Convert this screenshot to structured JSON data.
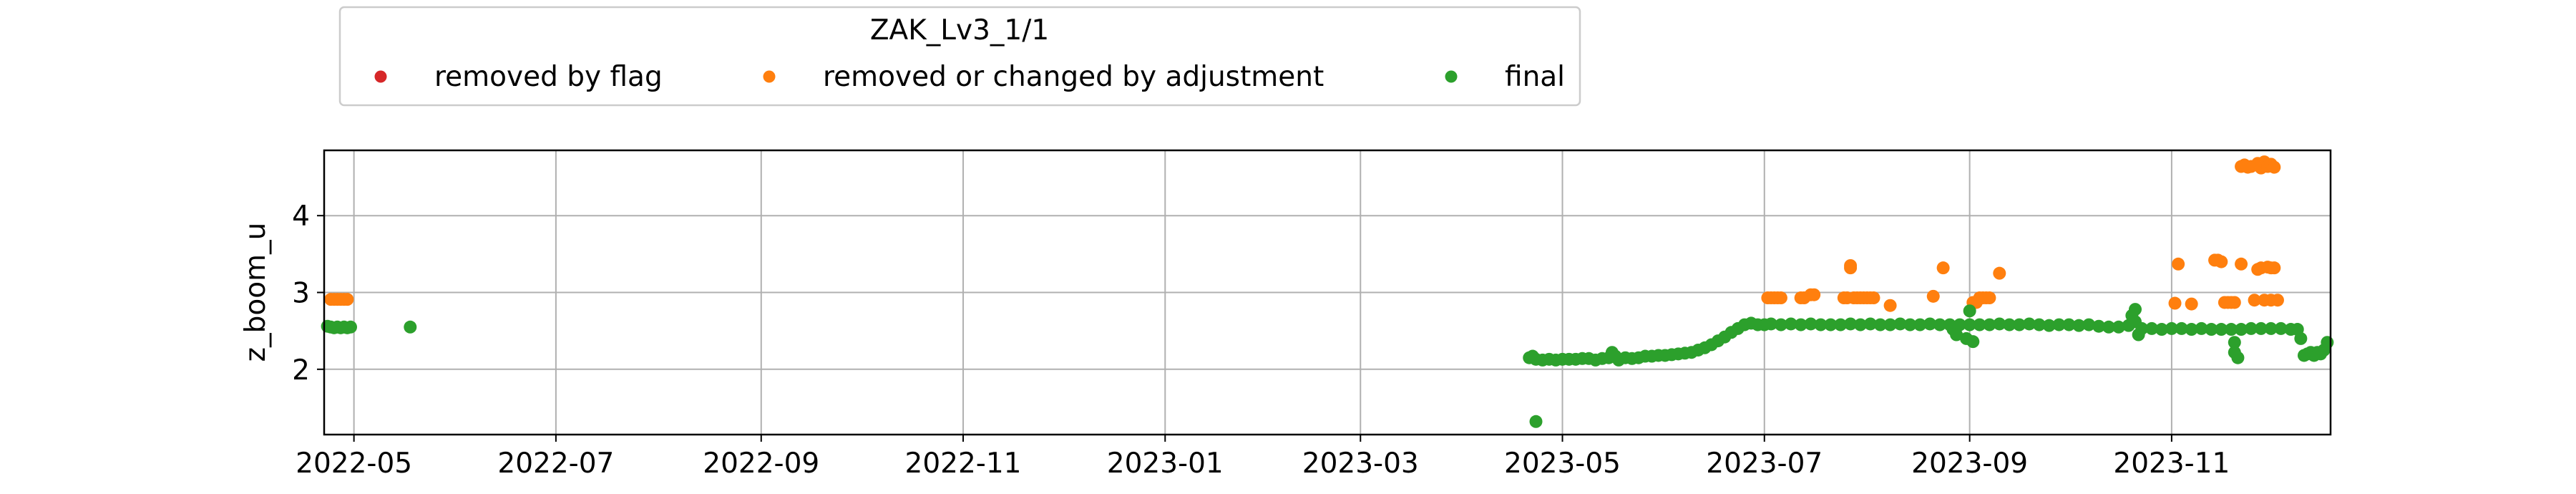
{
  "chart_data": {
    "type": "scatter",
    "title": "",
    "xlabel": "",
    "ylabel": "z_boom_u",
    "x_type": "date",
    "xlim": [
      "2022-04-22",
      "2023-12-19"
    ],
    "ylim": [
      1.15,
      4.85
    ],
    "x_ticks": [
      "2022-05-01",
      "2022-07-01",
      "2022-09-01",
      "2022-11-01",
      "2023-01-01",
      "2023-03-01",
      "2023-05-01",
      "2023-07-01",
      "2023-09-01",
      "2023-11-01"
    ],
    "x_tick_labels": [
      "2022-05",
      "2022-07",
      "2022-09",
      "2022-11",
      "2023-01",
      "2023-03",
      "2023-05",
      "2023-07",
      "2023-09",
      "2023-11"
    ],
    "y_ticks": [
      2,
      3,
      4
    ],
    "y_tick_labels": [
      "2",
      "3",
      "4"
    ],
    "grid": true,
    "legend": {
      "title": "ZAK_Lv3_1/1",
      "placement": "top-left, above plot",
      "columns": 3
    },
    "series": [
      {
        "name": "removed by flag",
        "color": "#d62728",
        "points": []
      },
      {
        "name": "removed or changed by adjustment",
        "color": "#ff7f0e",
        "points": [
          [
            "2022-04-24",
            2.91
          ],
          [
            "2022-04-25",
            2.91
          ],
          [
            "2022-04-26",
            2.91
          ],
          [
            "2022-04-27",
            2.91
          ],
          [
            "2022-04-28",
            2.91
          ],
          [
            "2022-04-29",
            2.91
          ],
          [
            "2023-07-02",
            2.93
          ],
          [
            "2023-07-03",
            2.93
          ],
          [
            "2023-07-04",
            2.93
          ],
          [
            "2023-07-05",
            2.93
          ],
          [
            "2023-07-06",
            2.93
          ],
          [
            "2023-07-12",
            2.93
          ],
          [
            "2023-07-13",
            2.93
          ],
          [
            "2023-07-15",
            2.97
          ],
          [
            "2023-07-16",
            2.97
          ],
          [
            "2023-07-25",
            2.93
          ],
          [
            "2023-07-26",
            2.93
          ],
          [
            "2023-07-27",
            3.32
          ],
          [
            "2023-07-27",
            3.35
          ],
          [
            "2023-07-28",
            2.93
          ],
          [
            "2023-07-29",
            2.93
          ],
          [
            "2023-07-30",
            2.93
          ],
          [
            "2023-07-31",
            2.93
          ],
          [
            "2023-08-01",
            2.93
          ],
          [
            "2023-08-02",
            2.93
          ],
          [
            "2023-08-03",
            2.93
          ],
          [
            "2023-08-08",
            2.83
          ],
          [
            "2023-08-21",
            2.95
          ],
          [
            "2023-08-24",
            3.32
          ],
          [
            "2023-09-02",
            2.87
          ],
          [
            "2023-09-03",
            2.87
          ],
          [
            "2023-09-04",
            2.93
          ],
          [
            "2023-09-05",
            2.93
          ],
          [
            "2023-09-06",
            2.93
          ],
          [
            "2023-09-07",
            2.93
          ],
          [
            "2023-09-10",
            3.25
          ],
          [
            "2023-11-02",
            2.86
          ],
          [
            "2023-11-03",
            3.37
          ],
          [
            "2023-11-07",
            2.85
          ],
          [
            "2023-11-14",
            3.42
          ],
          [
            "2023-11-15",
            3.42
          ],
          [
            "2023-11-16",
            3.4
          ],
          [
            "2023-11-17",
            2.87
          ],
          [
            "2023-11-18",
            2.87
          ],
          [
            "2023-11-19",
            2.87
          ],
          [
            "2023-11-20",
            2.87
          ],
          [
            "2023-11-22",
            3.37
          ],
          [
            "2023-11-22",
            4.64
          ],
          [
            "2023-11-23",
            4.66
          ],
          [
            "2023-11-24",
            4.63
          ],
          [
            "2023-11-25",
            4.64
          ],
          [
            "2023-11-26",
            2.9
          ],
          [
            "2023-11-27",
            3.3
          ],
          [
            "2023-11-27",
            4.68
          ],
          [
            "2023-11-28",
            3.32
          ],
          [
            "2023-11-28",
            4.62
          ],
          [
            "2023-11-29",
            4.7
          ],
          [
            "2023-11-29",
            2.9
          ],
          [
            "2023-11-30",
            3.33
          ],
          [
            "2023-11-30",
            4.64
          ],
          [
            "2023-12-01",
            3.32
          ],
          [
            "2023-12-01",
            4.67
          ],
          [
            "2023-12-01",
            2.9
          ],
          [
            "2023-12-02",
            4.63
          ],
          [
            "2023-12-02",
            3.32
          ],
          [
            "2023-12-03",
            2.9
          ]
        ]
      },
      {
        "name": "final",
        "color": "#2ca02c",
        "points": [
          [
            "2022-04-23",
            2.56
          ],
          [
            "2022-04-24",
            2.55
          ],
          [
            "2022-04-25",
            2.54
          ],
          [
            "2022-04-26",
            2.55
          ],
          [
            "2022-04-27",
            2.54
          ],
          [
            "2022-04-28",
            2.55
          ],
          [
            "2022-04-29",
            2.54
          ],
          [
            "2022-04-30",
            2.55
          ],
          [
            "2022-05-18",
            2.55
          ],
          [
            "2023-04-21",
            2.15
          ],
          [
            "2023-04-22",
            2.17
          ],
          [
            "2023-04-23",
            2.13
          ],
          [
            "2023-04-23",
            1.32
          ],
          [
            "2023-04-25",
            2.12
          ],
          [
            "2023-04-27",
            2.13
          ],
          [
            "2023-04-29",
            2.12
          ],
          [
            "2023-05-01",
            2.13
          ],
          [
            "2023-05-03",
            2.13
          ],
          [
            "2023-05-05",
            2.13
          ],
          [
            "2023-05-07",
            2.14
          ],
          [
            "2023-05-09",
            2.14
          ],
          [
            "2023-05-11",
            2.12
          ],
          [
            "2023-05-13",
            2.14
          ],
          [
            "2023-05-15",
            2.15
          ],
          [
            "2023-05-16",
            2.22
          ],
          [
            "2023-05-17",
            2.17
          ],
          [
            "2023-05-18",
            2.12
          ],
          [
            "2023-05-20",
            2.15
          ],
          [
            "2023-05-22",
            2.14
          ],
          [
            "2023-05-24",
            2.15
          ],
          [
            "2023-05-26",
            2.17
          ],
          [
            "2023-05-28",
            2.17
          ],
          [
            "2023-05-30",
            2.18
          ],
          [
            "2023-06-01",
            2.18
          ],
          [
            "2023-06-03",
            2.19
          ],
          [
            "2023-06-05",
            2.2
          ],
          [
            "2023-06-07",
            2.21
          ],
          [
            "2023-06-09",
            2.22
          ],
          [
            "2023-06-11",
            2.25
          ],
          [
            "2023-06-13",
            2.28
          ],
          [
            "2023-06-15",
            2.32
          ],
          [
            "2023-06-17",
            2.37
          ],
          [
            "2023-06-19",
            2.42
          ],
          [
            "2023-06-21",
            2.48
          ],
          [
            "2023-06-23",
            2.53
          ],
          [
            "2023-06-25",
            2.58
          ],
          [
            "2023-06-27",
            2.6
          ],
          [
            "2023-06-29",
            2.58
          ],
          [
            "2023-07-01",
            2.58
          ],
          [
            "2023-07-03",
            2.59
          ],
          [
            "2023-07-06",
            2.58
          ],
          [
            "2023-07-09",
            2.59
          ],
          [
            "2023-07-12",
            2.58
          ],
          [
            "2023-07-15",
            2.59
          ],
          [
            "2023-07-18",
            2.58
          ],
          [
            "2023-07-21",
            2.58
          ],
          [
            "2023-07-24",
            2.58
          ],
          [
            "2023-07-27",
            2.59
          ],
          [
            "2023-07-30",
            2.58
          ],
          [
            "2023-08-02",
            2.59
          ],
          [
            "2023-08-05",
            2.58
          ],
          [
            "2023-08-08",
            2.58
          ],
          [
            "2023-08-11",
            2.59
          ],
          [
            "2023-08-14",
            2.58
          ],
          [
            "2023-08-17",
            2.58
          ],
          [
            "2023-08-20",
            2.59
          ],
          [
            "2023-08-23",
            2.58
          ],
          [
            "2023-08-26",
            2.58
          ],
          [
            "2023-08-27",
            2.52
          ],
          [
            "2023-08-28",
            2.45
          ],
          [
            "2023-08-29",
            2.58
          ],
          [
            "2023-08-31",
            2.4
          ],
          [
            "2023-09-01",
            2.76
          ],
          [
            "2023-09-01",
            2.58
          ],
          [
            "2023-09-02",
            2.36
          ],
          [
            "2023-09-04",
            2.58
          ],
          [
            "2023-09-07",
            2.58
          ],
          [
            "2023-09-10",
            2.59
          ],
          [
            "2023-09-13",
            2.58
          ],
          [
            "2023-09-16",
            2.58
          ],
          [
            "2023-09-19",
            2.59
          ],
          [
            "2023-09-22",
            2.58
          ],
          [
            "2023-09-25",
            2.57
          ],
          [
            "2023-09-28",
            2.58
          ],
          [
            "2023-10-01",
            2.58
          ],
          [
            "2023-10-04",
            2.57
          ],
          [
            "2023-10-07",
            2.58
          ],
          [
            "2023-10-10",
            2.56
          ],
          [
            "2023-10-13",
            2.55
          ],
          [
            "2023-10-16",
            2.55
          ],
          [
            "2023-10-19",
            2.57
          ],
          [
            "2023-10-20",
            2.7
          ],
          [
            "2023-10-21",
            2.78
          ],
          [
            "2023-10-21",
            2.62
          ],
          [
            "2023-10-22",
            2.45
          ],
          [
            "2023-10-23",
            2.53
          ],
          [
            "2023-10-26",
            2.53
          ],
          [
            "2023-10-29",
            2.52
          ],
          [
            "2023-11-01",
            2.53
          ],
          [
            "2023-11-04",
            2.53
          ],
          [
            "2023-11-07",
            2.52
          ],
          [
            "2023-11-10",
            2.53
          ],
          [
            "2023-11-13",
            2.52
          ],
          [
            "2023-11-16",
            2.52
          ],
          [
            "2023-11-19",
            2.52
          ],
          [
            "2023-11-20",
            2.22
          ],
          [
            "2023-11-20",
            2.35
          ],
          [
            "2023-11-21",
            2.15
          ],
          [
            "2023-11-22",
            2.52
          ],
          [
            "2023-11-25",
            2.53
          ],
          [
            "2023-11-28",
            2.53
          ],
          [
            "2023-12-01",
            2.53
          ],
          [
            "2023-12-04",
            2.53
          ],
          [
            "2023-12-07",
            2.52
          ],
          [
            "2023-12-09",
            2.52
          ],
          [
            "2023-12-10",
            2.4
          ],
          [
            "2023-12-11",
            2.18
          ],
          [
            "2023-12-12",
            2.2
          ],
          [
            "2023-12-13",
            2.22
          ],
          [
            "2023-12-14",
            2.18
          ],
          [
            "2023-12-15",
            2.22
          ],
          [
            "2023-12-16",
            2.2
          ],
          [
            "2023-12-17",
            2.25
          ],
          [
            "2023-12-18",
            2.35
          ]
        ]
      }
    ]
  }
}
